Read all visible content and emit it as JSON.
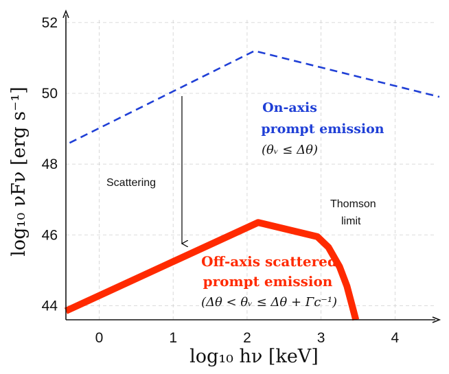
{
  "chart_data": {
    "type": "line",
    "xlabel": "log₁₀ hν  [keV]",
    "ylabel": "log₁₀ νFν  [erg s⁻¹]",
    "xlim": [
      -0.45,
      4.6
    ],
    "ylim": [
      43.6,
      52.25
    ],
    "xticks": [
      0,
      1,
      2,
      3,
      4
    ],
    "yticks": [
      44,
      46,
      48,
      50,
      52
    ],
    "grid": true,
    "series": [
      {
        "color": "#1f3fd6",
        "style": "dashed",
        "x": [
          -0.4,
          2.1,
          4.6
        ],
        "y": [
          48.6,
          51.2,
          49.9
        ]
      },
      {
        "color": "#ff2a00",
        "style": "solid-thick",
        "x": [
          -0.45,
          2.15,
          2.95,
          3.1,
          3.25,
          3.35,
          3.42,
          3.47
        ],
        "y": [
          43.85,
          46.35,
          45.95,
          45.65,
          45.1,
          44.55,
          44.0,
          43.6
        ]
      }
    ],
    "annotations": {
      "scattering": "Scattering",
      "thomson_line1": "Thomson",
      "thomson_line2": "limit",
      "onaxis_line1": "On-axis",
      "onaxis_line2": "prompt emission",
      "onaxis_cond": "(θᵥ ≤ Δθ)",
      "offaxis_line1": "Off-axis scattered",
      "offaxis_line2": "prompt emission",
      "offaxis_cond": "(Δθ < θᵥ ≤ Δθ + Γc⁻¹)"
    }
  }
}
